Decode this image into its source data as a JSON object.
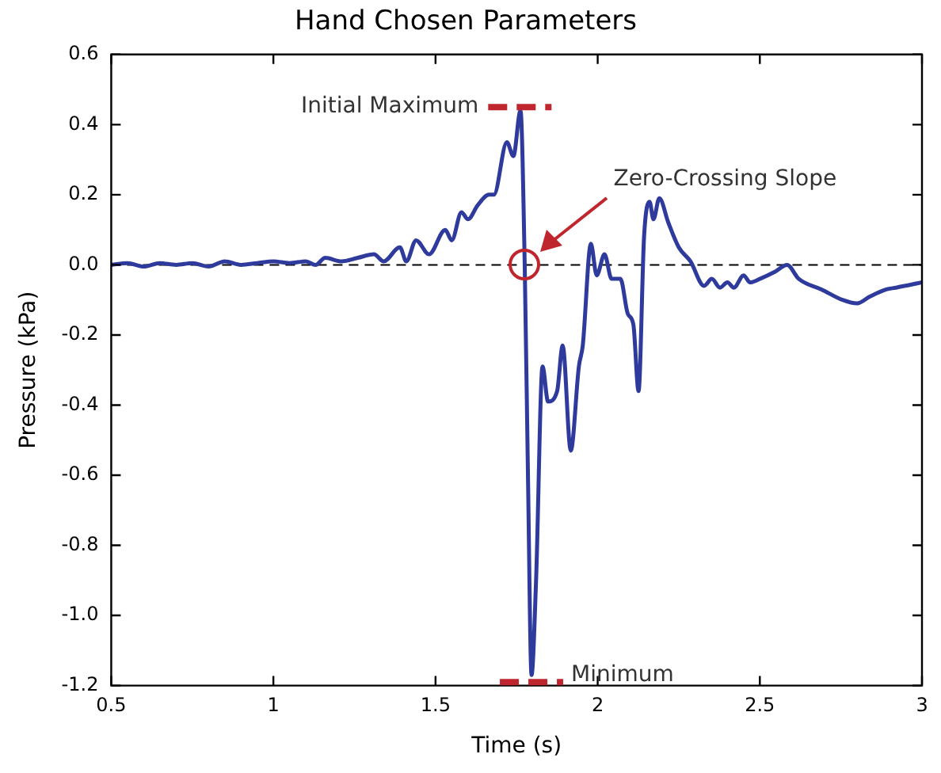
{
  "chart_data": {
    "type": "line",
    "title": "Hand Chosen Parameters",
    "xlabel": "Time (s)",
    "ylabel": "Pressure (kPa)",
    "x": [
      0.5,
      0.55,
      0.6,
      0.65,
      0.7,
      0.75,
      0.8,
      0.85,
      0.9,
      0.95,
      1.0,
      1.05,
      1.1,
      1.13,
      1.16,
      1.21,
      1.26,
      1.31,
      1.34,
      1.39,
      1.41,
      1.44,
      1.48,
      1.53,
      1.55,
      1.58,
      1.6,
      1.63,
      1.665,
      1.68,
      1.72,
      1.74,
      1.762,
      1.775,
      1.785,
      1.796,
      1.81,
      1.83,
      1.847,
      1.875,
      1.892,
      1.917,
      1.942,
      1.954,
      1.979,
      1.997,
      2.021,
      2.043,
      2.07,
      2.093,
      2.11,
      2.126,
      2.143,
      2.16,
      2.172,
      2.19,
      2.218,
      2.25,
      2.286,
      2.328,
      2.352,
      2.377,
      2.4,
      2.42,
      2.45,
      2.47,
      2.5,
      2.546,
      2.584,
      2.62,
      2.69,
      2.755,
      2.8,
      2.84,
      2.89,
      2.92,
      3.0
    ],
    "series": [
      {
        "color": "#2f3b9c",
        "values": [
          0.0,
          0.005,
          -0.005,
          0.005,
          0.0,
          0.005,
          -0.005,
          0.01,
          0.0,
          0.005,
          0.01,
          0.005,
          0.01,
          0.0,
          0.02,
          0.01,
          0.02,
          0.03,
          0.01,
          0.05,
          0.01,
          0.07,
          0.03,
          0.1,
          0.07,
          0.15,
          0.13,
          0.17,
          0.2,
          0.2,
          0.35,
          0.31,
          0.44,
          0.0,
          -0.6,
          -1.17,
          -0.9,
          -0.29,
          -0.39,
          -0.36,
          -0.23,
          -0.53,
          -0.29,
          -0.23,
          0.06,
          -0.03,
          0.03,
          -0.04,
          -0.04,
          -0.14,
          -0.17,
          -0.36,
          0.08,
          0.18,
          0.13,
          0.19,
          0.12,
          0.05,
          0.01,
          -0.06,
          -0.04,
          -0.065,
          -0.05,
          -0.065,
          -0.03,
          -0.05,
          -0.04,
          -0.02,
          0.0,
          -0.04,
          -0.07,
          -0.1,
          -0.11,
          -0.09,
          -0.07,
          -0.065,
          -0.05
        ]
      }
    ],
    "xlim": [
      0.5,
      3
    ],
    "xticks": [
      0.5,
      1,
      1.5,
      2,
      2.5,
      3
    ],
    "ylim": [
      -1.2,
      0.6
    ],
    "yticks": [
      {
        "value": -1.2,
        "label": "-1.2"
      },
      {
        "value": -1,
        "label": "-1.0"
      },
      {
        "value": -0.8,
        "label": "-0.8"
      },
      {
        "value": -0.6,
        "label": "-0.6"
      },
      {
        "value": -0.4,
        "label": "-0.4"
      },
      {
        "value": -0.2,
        "label": "-0.2"
      },
      {
        "value": 0,
        "label": "0.0"
      },
      {
        "value": 0.2,
        "label": "0.2"
      },
      {
        "value": 0.4,
        "label": "0.4"
      },
      {
        "value": 0.6,
        "label": "0.6"
      }
    ],
    "ref_lines": [
      {
        "axis": "y",
        "value": 0,
        "color": "#000000",
        "line_style": "dashed"
      }
    ],
    "annotations": [
      {
        "text": "Initial Maximum",
        "x": 1.76,
        "y": 0.45
      },
      "Zero-Crossing Slope",
      {
        "text": "Minimum",
        "x": 1.796,
        "y": -1.19
      }
    ],
    "grid": false,
    "legend": false,
    "marker": "none",
    "line_style": "solid"
  }
}
